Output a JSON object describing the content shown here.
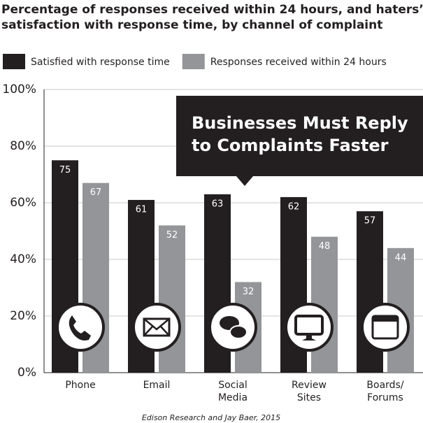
{
  "chart_data": {
    "type": "bar",
    "title": "Percentage of responses received within 24 hours, and haters’",
    "subtitle": "satisfaction with response time, by channel of complaint",
    "categories": [
      "Phone",
      "Email",
      "Social\nMedia",
      "Review\nSites",
      "Boards/\nForums"
    ],
    "series": [
      {
        "name": "Satisfied with response time",
        "color": "#231f20",
        "values": [
          75,
          61,
          63,
          62,
          57
        ]
      },
      {
        "name": "Responses received within 24 hours",
        "color": "#939598",
        "values": [
          67,
          52,
          32,
          48,
          44
        ]
      }
    ],
    "ylim": [
      0,
      100
    ],
    "yticks": [
      {
        "value": 0,
        "label": "0%"
      },
      {
        "value": 20,
        "label": "20%"
      },
      {
        "value": 40,
        "label": "40%"
      },
      {
        "value": 60,
        "label": "60%"
      },
      {
        "value": 80,
        "label": "80%"
      },
      {
        "value": 100,
        "label": "100%"
      }
    ],
    "grid": true,
    "annotation": [
      "Businesses Must Reply",
      "to Complaints Faster"
    ],
    "source": "Edison Research and Jay Baer, 2015"
  }
}
